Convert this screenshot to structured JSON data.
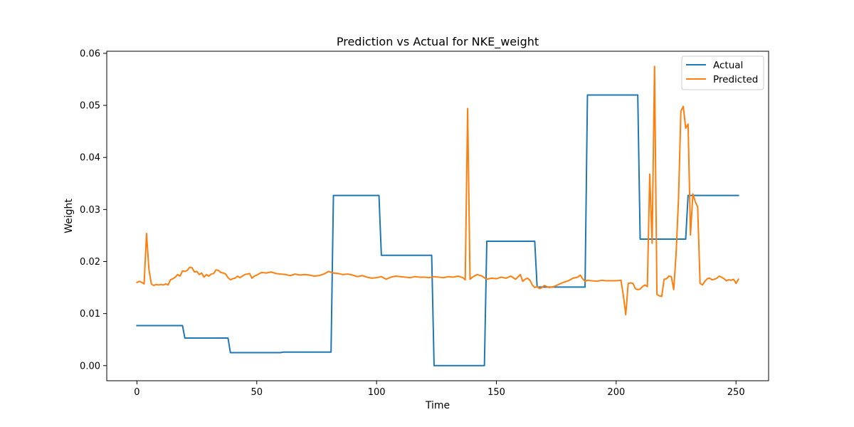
{
  "chart_data": {
    "type": "line",
    "title": "Prediction vs Actual for NKE_weight",
    "xlabel": "Time",
    "ylabel": "Weight",
    "xlim": [
      -12.6,
      263.6
    ],
    "ylim": [
      -0.0029,
      0.0604
    ],
    "xticks": [
      0,
      50,
      100,
      150,
      200,
      250
    ],
    "yticks": [
      0.0,
      0.01,
      0.02,
      0.03,
      0.04,
      0.05,
      0.06
    ],
    "ytick_labels": [
      "0.00",
      "0.01",
      "0.02",
      "0.03",
      "0.04",
      "0.05",
      "0.06"
    ],
    "grid": false,
    "legend_position": "top-right",
    "series": [
      {
        "name": "Actual",
        "color": "#1f77b4",
        "x": [
          0,
          19,
          20,
          38,
          39,
          60,
          61,
          81,
          82,
          101,
          102,
          123,
          124,
          145,
          146,
          166,
          167,
          187,
          188,
          209,
          210,
          229,
          230,
          251
        ],
        "y": [
          0.0077,
          0.0077,
          0.0053,
          0.0053,
          0.0025,
          0.0025,
          0.0026,
          0.0026,
          0.0327,
          0.0327,
          0.0212,
          0.0212,
          0.0,
          0.0,
          0.0239,
          0.0239,
          0.0151,
          0.0151,
          0.052,
          0.052,
          0.0243,
          0.0243,
          0.0327,
          0.0327
        ]
      },
      {
        "name": "Predicted",
        "color": "#ff7f0e",
        "x": [
          0,
          1,
          2,
          3,
          4,
          5,
          6,
          7,
          8,
          9,
          10,
          11,
          12,
          13,
          14,
          15,
          16,
          17,
          18,
          19,
          20,
          21,
          22,
          23,
          24,
          25,
          26,
          27,
          28,
          29,
          30,
          31,
          32,
          33,
          34,
          35,
          36,
          37,
          38,
          39,
          40,
          41,
          42,
          43,
          44,
          45,
          46,
          47,
          48,
          49,
          50,
          52,
          54,
          56,
          58,
          60,
          62,
          64,
          66,
          68,
          70,
          72,
          74,
          76,
          78,
          80,
          82,
          84,
          86,
          88,
          90,
          92,
          94,
          96,
          98,
          100,
          102,
          104,
          106,
          108,
          110,
          112,
          114,
          116,
          118,
          120,
          122,
          124,
          126,
          128,
          130,
          132,
          134,
          136,
          137,
          138,
          139,
          140,
          142,
          144,
          146,
          148,
          150,
          152,
          154,
          156,
          158,
          160,
          161,
          162,
          163,
          164,
          165,
          166,
          167,
          168,
          169,
          170,
          172,
          174,
          176,
          178,
          180,
          182,
          184,
          185,
          186,
          187,
          188,
          190,
          192,
          194,
          196,
          198,
          200,
          202,
          203,
          204,
          205,
          206,
          207,
          208,
          209,
          210,
          211,
          212,
          213,
          214,
          215,
          216,
          217,
          218,
          219,
          220,
          221,
          222,
          223,
          224,
          225,
          226,
          227,
          228,
          229,
          230,
          231,
          232,
          233,
          234,
          235,
          236,
          237,
          238,
          239,
          240,
          241,
          242,
          243,
          244,
          245,
          246,
          247,
          248,
          249,
          250,
          251
        ],
        "y": [
          0.016,
          0.0162,
          0.016,
          0.0157,
          0.0254,
          0.0185,
          0.0157,
          0.0154,
          0.0156,
          0.0155,
          0.0156,
          0.0155,
          0.0157,
          0.0155,
          0.0165,
          0.0167,
          0.017,
          0.0175,
          0.0172,
          0.0182,
          0.0181,
          0.0183,
          0.0189,
          0.0188,
          0.018,
          0.0181,
          0.0175,
          0.0178,
          0.017,
          0.0175,
          0.0172,
          0.0176,
          0.0177,
          0.0184,
          0.0183,
          0.0179,
          0.0178,
          0.0176,
          0.0169,
          0.0165,
          0.0167,
          0.0168,
          0.0172,
          0.0169,
          0.0172,
          0.0175,
          0.0176,
          0.0177,
          0.0168,
          0.0172,
          0.0174,
          0.0179,
          0.0178,
          0.018,
          0.0177,
          0.0176,
          0.0175,
          0.0173,
          0.0176,
          0.0174,
          0.0175,
          0.0174,
          0.0172,
          0.0173,
          0.0176,
          0.0181,
          0.0178,
          0.0177,
          0.0175,
          0.0176,
          0.0174,
          0.0171,
          0.0173,
          0.017,
          0.0168,
          0.0169,
          0.0171,
          0.0166,
          0.017,
          0.0172,
          0.0171,
          0.017,
          0.0169,
          0.0171,
          0.017,
          0.017,
          0.0169,
          0.0171,
          0.017,
          0.0169,
          0.0171,
          0.017,
          0.0172,
          0.0169,
          0.0165,
          0.0494,
          0.0166,
          0.017,
          0.0175,
          0.0172,
          0.0166,
          0.0168,
          0.0167,
          0.017,
          0.0168,
          0.0172,
          0.0166,
          0.0175,
          0.0162,
          0.0166,
          0.0168,
          0.0164,
          0.0155,
          0.015,
          0.0152,
          0.0148,
          0.015,
          0.0154,
          0.015,
          0.0152,
          0.0156,
          0.016,
          0.0163,
          0.0168,
          0.017,
          0.0174,
          0.0167,
          0.0162,
          0.0164,
          0.0163,
          0.0162,
          0.0164,
          0.0163,
          0.0163,
          0.0163,
          0.0164,
          0.0134,
          0.0098,
          0.0158,
          0.0159,
          0.0158,
          0.0148,
          0.0146,
          0.0147,
          0.0152,
          0.0155,
          0.0152,
          0.0368,
          0.0235,
          0.0575,
          0.0137,
          0.0134,
          0.0133,
          0.0166,
          0.0167,
          0.0172,
          0.0171,
          0.0146,
          0.0215,
          0.032,
          0.0489,
          0.0498,
          0.0456,
          0.0464,
          0.0251,
          0.033,
          0.0315,
          0.0305,
          0.0158,
          0.0155,
          0.0162,
          0.0167,
          0.0168,
          0.0165,
          0.0166,
          0.0168,
          0.0172,
          0.017,
          0.0167,
          0.0163,
          0.0165,
          0.0164,
          0.0166,
          0.0158,
          0.0166
        ]
      }
    ]
  }
}
